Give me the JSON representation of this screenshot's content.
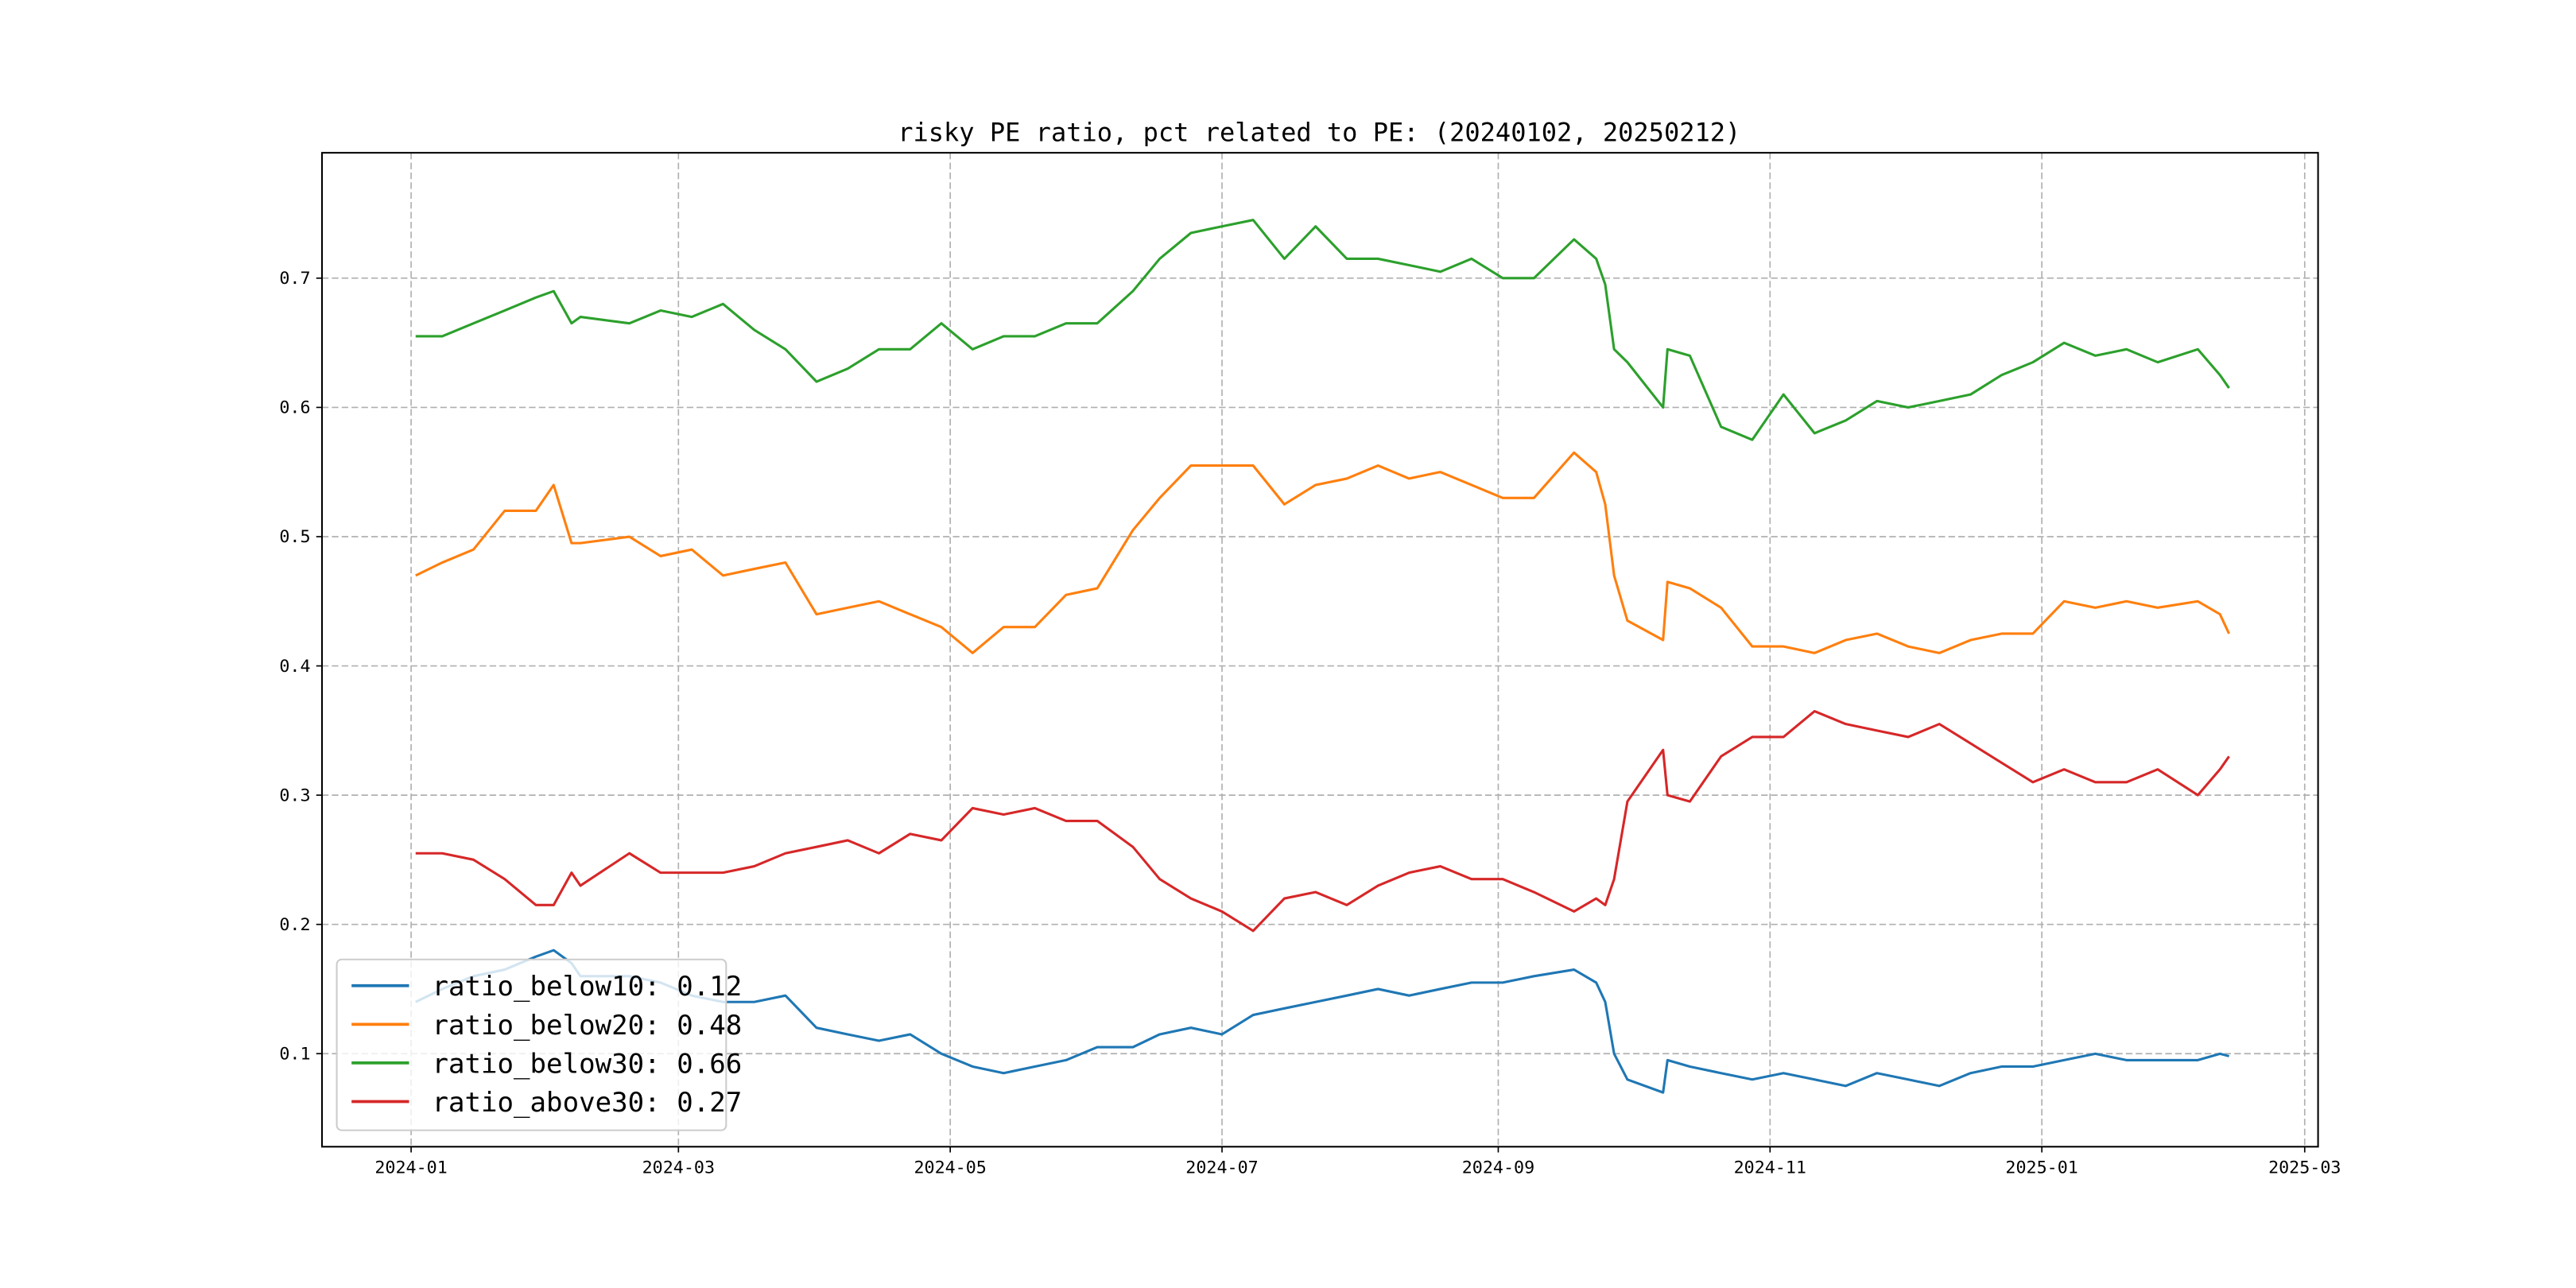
{
  "chart_data": {
    "type": "line",
    "title": "risky PE ratio, pct related to PE: (20240102, 20250212)",
    "xlabel": "",
    "ylabel": "",
    "xlim": [
      "2023-12-12",
      "2025-03-04"
    ],
    "ylim": [
      0.028,
      0.797
    ],
    "grid": true,
    "legend_position": "lower-left",
    "x_ticks": [
      "2024-01",
      "2024-03",
      "2024-05",
      "2024-07",
      "2024-09",
      "2024-11",
      "2025-01",
      "2025-03"
    ],
    "y_ticks": [
      "0.1",
      "0.2",
      "0.3",
      "0.4",
      "0.5",
      "0.6",
      "0.7"
    ],
    "x": [
      "2024-01-02",
      "2024-01-08",
      "2024-01-15",
      "2024-01-22",
      "2024-01-29",
      "2024-02-02",
      "2024-02-06",
      "2024-02-08",
      "2024-02-19",
      "2024-02-26",
      "2024-03-04",
      "2024-03-11",
      "2024-03-18",
      "2024-03-25",
      "2024-04-01",
      "2024-04-08",
      "2024-04-15",
      "2024-04-22",
      "2024-04-29",
      "2024-05-06",
      "2024-05-13",
      "2024-05-20",
      "2024-05-27",
      "2024-06-03",
      "2024-06-11",
      "2024-06-17",
      "2024-06-24",
      "2024-07-01",
      "2024-07-08",
      "2024-07-15",
      "2024-07-22",
      "2024-07-29",
      "2024-08-05",
      "2024-08-12",
      "2024-08-19",
      "2024-08-26",
      "2024-09-02",
      "2024-09-09",
      "2024-09-18",
      "2024-09-23",
      "2024-09-25",
      "2024-09-27",
      "2024-09-30",
      "2024-10-08",
      "2024-10-09",
      "2024-10-14",
      "2024-10-21",
      "2024-10-28",
      "2024-11-04",
      "2024-11-11",
      "2024-11-18",
      "2024-11-25",
      "2024-12-02",
      "2024-12-09",
      "2024-12-16",
      "2024-12-23",
      "2024-12-30",
      "2025-01-06",
      "2025-01-13",
      "2025-01-20",
      "2025-01-27",
      "2025-02-05",
      "2025-02-10",
      "2025-02-12"
    ],
    "series": [
      {
        "name": "ratio_below10",
        "legend": "ratio_below10: 0.12",
        "color": "#1f77b4",
        "values": [
          0.14,
          0.15,
          0.16,
          0.165,
          0.175,
          0.18,
          0.17,
          0.16,
          0.16,
          0.155,
          0.145,
          0.14,
          0.14,
          0.145,
          0.12,
          0.115,
          0.11,
          0.115,
          0.1,
          0.09,
          0.085,
          0.09,
          0.095,
          0.105,
          0.105,
          0.115,
          0.12,
          0.115,
          0.13,
          0.135,
          0.14,
          0.145,
          0.15,
          0.145,
          0.15,
          0.155,
          0.155,
          0.16,
          0.165,
          0.155,
          0.14,
          0.1,
          0.08,
          0.07,
          0.095,
          0.09,
          0.085,
          0.08,
          0.085,
          0.08,
          0.075,
          0.085,
          0.08,
          0.075,
          0.085,
          0.09,
          0.09,
          0.095,
          0.1,
          0.095,
          0.095,
          0.095,
          0.1,
          0.098
        ]
      },
      {
        "name": "ratio_below20",
        "legend": "ratio_below20: 0.48",
        "color": "#ff7f0e",
        "values": [
          0.47,
          0.48,
          0.49,
          0.52,
          0.52,
          0.54,
          0.495,
          0.495,
          0.5,
          0.485,
          0.49,
          0.47,
          0.475,
          0.48,
          0.44,
          0.445,
          0.45,
          0.44,
          0.43,
          0.41,
          0.43,
          0.43,
          0.455,
          0.46,
          0.505,
          0.53,
          0.555,
          0.555,
          0.555,
          0.525,
          0.54,
          0.545,
          0.555,
          0.545,
          0.55,
          0.54,
          0.53,
          0.53,
          0.565,
          0.55,
          0.525,
          0.47,
          0.435,
          0.42,
          0.465,
          0.46,
          0.445,
          0.415,
          0.415,
          0.41,
          0.42,
          0.425,
          0.415,
          0.41,
          0.42,
          0.425,
          0.425,
          0.45,
          0.445,
          0.45,
          0.445,
          0.45,
          0.44,
          0.425
        ]
      },
      {
        "name": "ratio_below30",
        "legend": "ratio_below30: 0.66",
        "color": "#2ca02c",
        "values": [
          0.655,
          0.655,
          0.665,
          0.675,
          0.685,
          0.69,
          0.665,
          0.67,
          0.665,
          0.675,
          0.67,
          0.68,
          0.66,
          0.645,
          0.62,
          0.63,
          0.645,
          0.645,
          0.665,
          0.645,
          0.655,
          0.655,
          0.665,
          0.665,
          0.69,
          0.715,
          0.735,
          0.74,
          0.745,
          0.715,
          0.74,
          0.715,
          0.715,
          0.71,
          0.705,
          0.715,
          0.7,
          0.7,
          0.73,
          0.715,
          0.695,
          0.645,
          0.635,
          0.6,
          0.645,
          0.64,
          0.585,
          0.575,
          0.61,
          0.58,
          0.59,
          0.605,
          0.6,
          0.605,
          0.61,
          0.625,
          0.635,
          0.65,
          0.64,
          0.645,
          0.635,
          0.645,
          0.625,
          0.615
        ]
      },
      {
        "name": "ratio_above30",
        "legend": "ratio_above30: 0.27",
        "color": "#d62728",
        "values": [
          0.255,
          0.255,
          0.25,
          0.235,
          0.215,
          0.215,
          0.24,
          0.23,
          0.255,
          0.24,
          0.24,
          0.24,
          0.245,
          0.255,
          0.26,
          0.265,
          0.255,
          0.27,
          0.265,
          0.29,
          0.285,
          0.29,
          0.28,
          0.28,
          0.26,
          0.235,
          0.22,
          0.21,
          0.195,
          0.22,
          0.225,
          0.215,
          0.23,
          0.24,
          0.245,
          0.235,
          0.235,
          0.225,
          0.21,
          0.22,
          0.215,
          0.235,
          0.295,
          0.335,
          0.3,
          0.295,
          0.33,
          0.345,
          0.345,
          0.365,
          0.355,
          0.35,
          0.345,
          0.355,
          0.34,
          0.325,
          0.31,
          0.32,
          0.31,
          0.31,
          0.32,
          0.3,
          0.32,
          0.33
        ]
      }
    ]
  }
}
